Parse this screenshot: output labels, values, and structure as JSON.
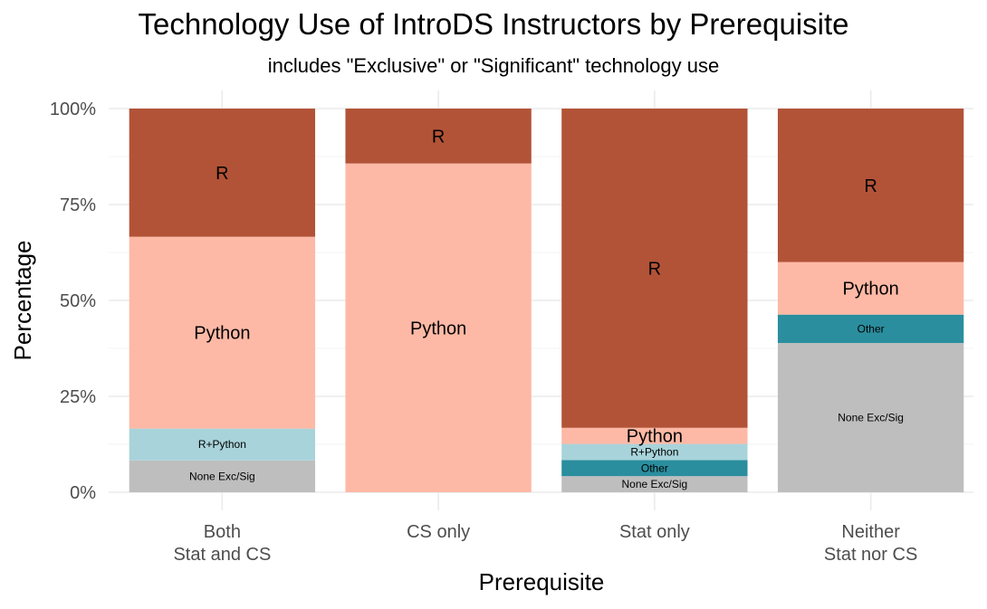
{
  "chart_data": {
    "type": "bar",
    "stacked": true,
    "title": "Technology Use of IntroDS Instructors by Prerequisite",
    "subtitle": "includes \"Exclusive\" or \"Significant\" technology use",
    "xlabel": "Prerequisite",
    "ylabel": "Percentage",
    "ylim": [
      0,
      100
    ],
    "yticks": [
      "0%",
      "25%",
      "50%",
      "75%",
      "100%"
    ],
    "ytick_values": [
      0,
      25,
      50,
      75,
      100
    ],
    "grid": true,
    "legend": "none",
    "categories": [
      [
        "Both",
        "Stat and CS"
      ],
      [
        "CS only"
      ],
      [
        "Stat only"
      ],
      [
        "Neither",
        "Stat nor CS"
      ]
    ],
    "stack_order": [
      "None Exc/Sig",
      "Other",
      "R+Python",
      "Python",
      "R"
    ],
    "series": [
      {
        "name": "None Exc/Sig",
        "color": "#bebebe",
        "values": [
          8.3,
          0,
          4.2,
          38.9
        ]
      },
      {
        "name": "Other",
        "color": "#2a8e9e",
        "values": [
          0,
          0,
          4.2,
          7.4
        ]
      },
      {
        "name": "R+Python",
        "color": "#a8d3da",
        "values": [
          8.3,
          0,
          4.2,
          0
        ]
      },
      {
        "name": "Python",
        "color": "#fdb9a6",
        "values": [
          50.0,
          85.7,
          4.2,
          13.7
        ]
      },
      {
        "name": "R",
        "color": "#b25337",
        "values": [
          33.4,
          14.3,
          83.2,
          40.0
        ]
      }
    ],
    "segment_labels": {
      "R": "R",
      "Python": "Python",
      "R+Python": "R+Python",
      "Other": "Other",
      "None Exc/Sig": "None Exc/Sig"
    }
  }
}
